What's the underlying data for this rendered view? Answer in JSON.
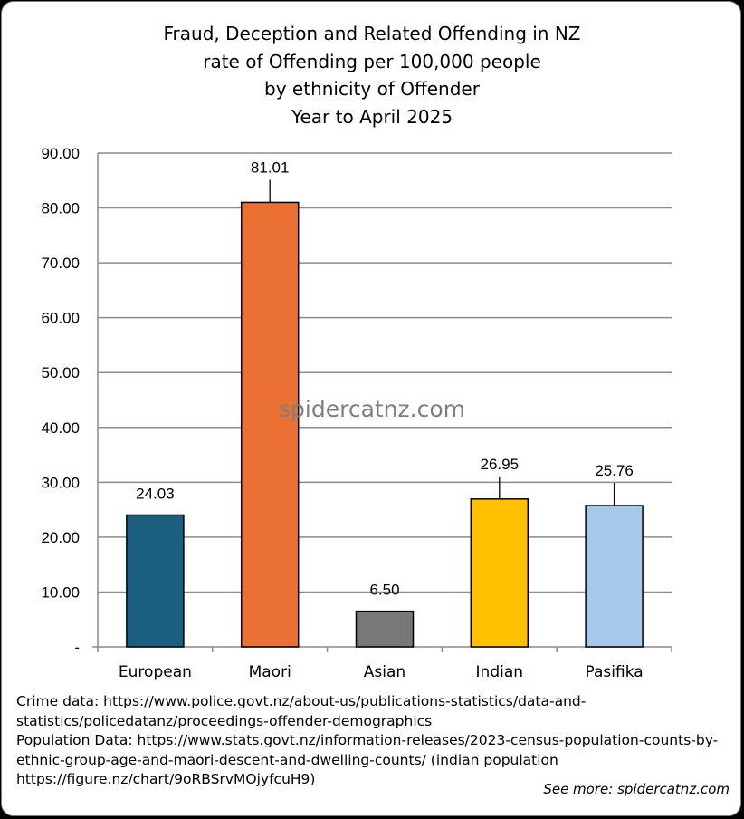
{
  "chart_data": {
    "type": "bar",
    "title_lines": [
      "Fraud, Deception and Related Offending in NZ",
      "rate of Offending per 100,000 people",
      "by ethnicity of Offender",
      "Year to April 2025"
    ],
    "categories": [
      "European",
      "Maori",
      "Asian",
      "Indian",
      "Pasifika"
    ],
    "values": [
      24.03,
      81.01,
      6.5,
      26.95,
      25.76
    ],
    "value_labels": [
      "24.03",
      "81.01",
      "6.50",
      "26.95",
      "25.76"
    ],
    "bar_colors": [
      "#1a5e80",
      "#ea7033",
      "#787878",
      "#ffc000",
      "#a6c8ea"
    ],
    "ylim": [
      0,
      90
    ],
    "y_ticks": [
      0,
      10,
      20,
      30,
      40,
      50,
      60,
      70,
      80,
      90
    ],
    "y_tick_labels": [
      "-",
      "10.00",
      "20.00",
      "30.00",
      "40.00",
      "50.00",
      "60.00",
      "70.00",
      "80.00",
      "90.00"
    ],
    "grid": true,
    "watermark": "spidercatnz.com"
  },
  "notes": [
    "Crime data: https://www.police.govt.nz/about-us/publications-statistics/data-and-",
    "statistics/policedatanz/proceedings-offender-demographics",
    "Population Data: https://www.stats.govt.nz/information-releases/2023-census-population-counts-by-",
    "ethnic-group-age-and-maori-descent-and-dwelling-counts/ (indian population",
    "https://figure.nz/chart/9oRBSrvMOjyfcuH9)"
  ],
  "see_more": "See more: spidercatnz.com"
}
